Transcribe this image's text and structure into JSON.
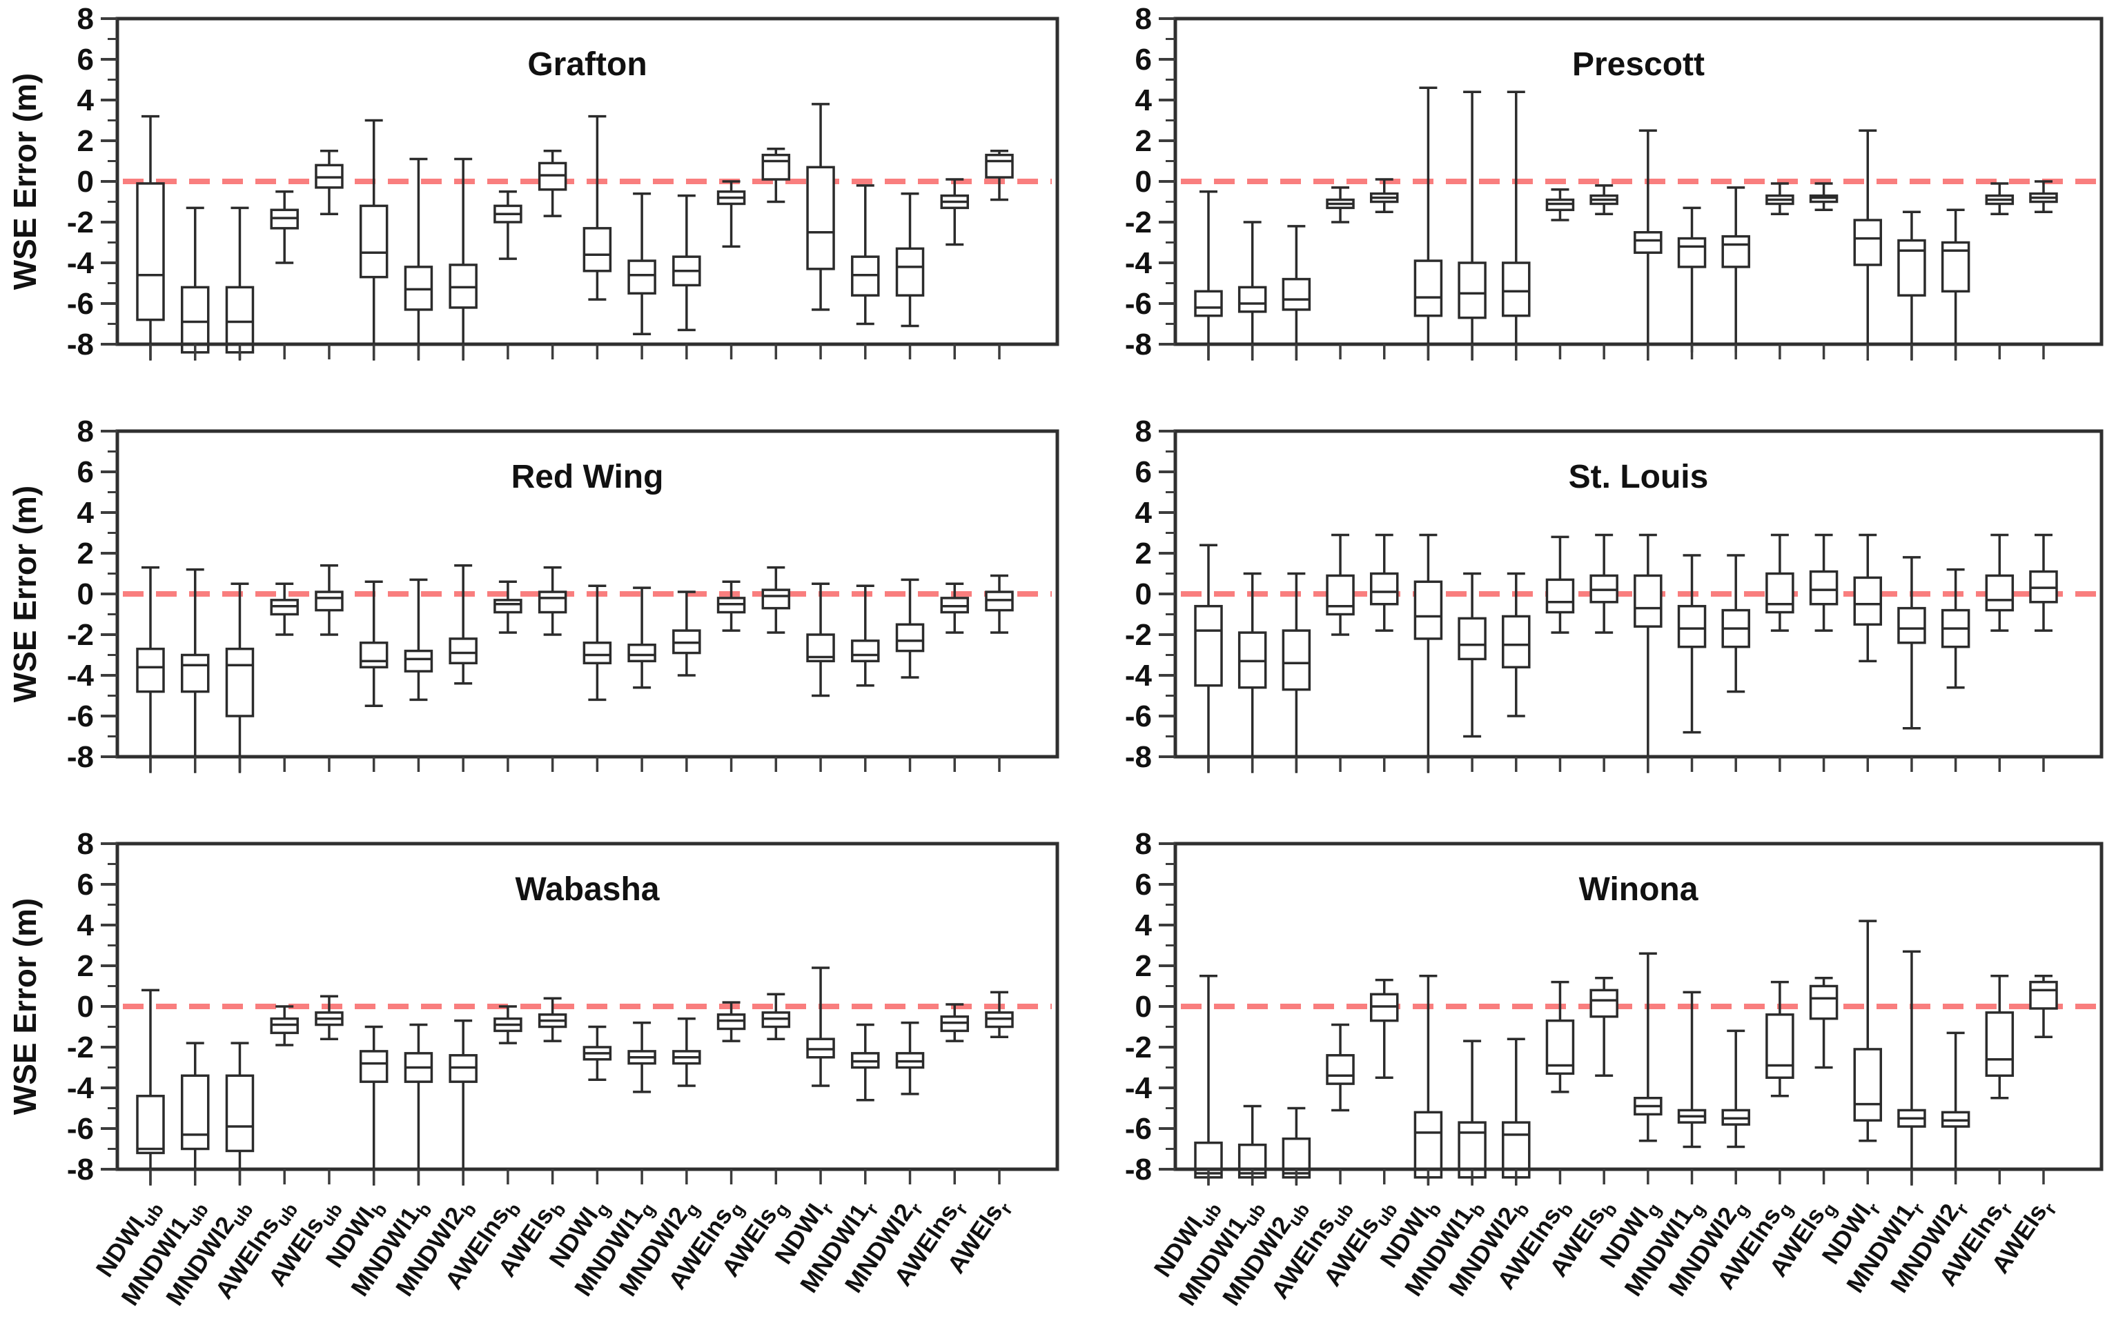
{
  "figure": {
    "ylabel": "WSE Error (m)",
    "ytick_labels": [
      "8",
      "6",
      "4",
      "2",
      "0",
      "-2",
      "-4",
      "-6",
      "-8"
    ],
    "colors": {
      "background": "#ffffff",
      "axis_frame": "#2f2f2f",
      "box_stroke": "#2b2b2b",
      "tick": "#3c3c3c",
      "text": "#111111",
      "zero_line": "#f96d6d"
    }
  },
  "chart_data": {
    "type": "boxplot_grid",
    "title": "",
    "ylabel": "WSE Error (m)",
    "xlabel": "",
    "ylim": [
      -8,
      8
    ],
    "yticks_major": [
      8,
      6,
      4,
      2,
      0,
      -2,
      -4,
      -6,
      -8
    ],
    "yticks_minor": [
      7,
      5,
      3,
      1,
      -1,
      -3,
      -5,
      -7
    ],
    "zero_reference_line": 0,
    "grid": "off",
    "legend": "none",
    "stats_order": [
      "whisker_low",
      "q1",
      "median",
      "q3",
      "whisker_high"
    ],
    "clipping_note": "values beyond ylim mean the whisker/box visibly extends past the -8 axis line (drawn unclipped, no end cap)",
    "categories": [
      "NDWI_ub",
      "MNDWI1_ub",
      "MNDWI2_ub",
      "AWEIns_ub",
      "AWEIs_ub",
      "NDWI_b",
      "MNDWI1_b",
      "MNDWI2_b",
      "AWEIns_b",
      "AWEIs_b",
      "NDWI_g",
      "MNDWI1_g",
      "MNDWI2_g",
      "AWEIns_g",
      "AWEIs_g",
      "NDWI_r",
      "MNDWI1_r",
      "MNDWI2_r",
      "AWEIns_r",
      "AWEIs_r"
    ],
    "category_display": [
      {
        "base": "NDWI",
        "sub": "ub"
      },
      {
        "base": "MNDWI1",
        "sub": "ub"
      },
      {
        "base": "MNDWI2",
        "sub": "ub"
      },
      {
        "base": "AWEIns",
        "sub": "ub"
      },
      {
        "base": "AWEIs",
        "sub": "ub"
      },
      {
        "base": "NDWI",
        "sub": "b"
      },
      {
        "base": "MNDWI1",
        "sub": "b"
      },
      {
        "base": "MNDWI2",
        "sub": "b"
      },
      {
        "base": "AWEIns",
        "sub": "b"
      },
      {
        "base": "AWEIs",
        "sub": "b"
      },
      {
        "base": "NDWI",
        "sub": "g"
      },
      {
        "base": "MNDWI1",
        "sub": "g"
      },
      {
        "base": "MNDWI2",
        "sub": "g"
      },
      {
        "base": "AWEIns",
        "sub": "g"
      },
      {
        "base": "AWEIs",
        "sub": "g"
      },
      {
        "base": "NDWI",
        "sub": "r"
      },
      {
        "base": "MNDWI1",
        "sub": "r"
      },
      {
        "base": "MNDWI2",
        "sub": "r"
      },
      {
        "base": "AWEIns",
        "sub": "r"
      },
      {
        "base": "AWEIs",
        "sub": "r"
      }
    ],
    "panels": [
      {
        "title": "Grafton",
        "row": 0,
        "col": 0,
        "values": [
          [
            -8.8,
            -6.8,
            -4.6,
            -0.1,
            3.2
          ],
          [
            -8.8,
            -8.4,
            -6.9,
            -5.2,
            -1.3
          ],
          [
            -8.8,
            -8.4,
            -6.9,
            -5.2,
            -1.3
          ],
          [
            -4.0,
            -2.3,
            -1.8,
            -1.4,
            -0.5
          ],
          [
            -1.6,
            -0.3,
            0.2,
            0.8,
            1.5
          ],
          [
            -8.8,
            -4.7,
            -3.5,
            -1.2,
            3.0
          ],
          [
            -8.8,
            -6.3,
            -5.3,
            -4.2,
            1.1
          ],
          [
            -8.8,
            -6.2,
            -5.2,
            -4.1,
            1.1
          ],
          [
            -3.8,
            -2.0,
            -1.6,
            -1.2,
            -0.5
          ],
          [
            -1.7,
            -0.4,
            0.3,
            0.9,
            1.5
          ],
          [
            -5.8,
            -4.4,
            -3.6,
            -2.3,
            3.2
          ],
          [
            -7.5,
            -5.5,
            -4.6,
            -3.9,
            -0.6
          ],
          [
            -7.3,
            -5.1,
            -4.4,
            -3.7,
            -0.7
          ],
          [
            -3.2,
            -1.1,
            -0.8,
            -0.5,
            0.0
          ],
          [
            -1.0,
            0.1,
            1.0,
            1.3,
            1.6
          ],
          [
            -6.3,
            -4.3,
            -2.5,
            0.7,
            3.8
          ],
          [
            -7.0,
            -5.6,
            -4.6,
            -3.7,
            -0.2
          ],
          [
            -7.1,
            -5.6,
            -4.2,
            -3.3,
            -0.6
          ],
          [
            -3.1,
            -1.3,
            -1.0,
            -0.7,
            0.1
          ],
          [
            -0.9,
            0.2,
            1.0,
            1.3,
            1.5
          ]
        ]
      },
      {
        "title": "Prescott",
        "row": 0,
        "col": 1,
        "values": [
          [
            -8.8,
            -6.6,
            -6.2,
            -5.4,
            -0.5
          ],
          [
            -8.8,
            -6.4,
            -6.0,
            -5.2,
            -2.0
          ],
          [
            -8.8,
            -6.3,
            -5.8,
            -4.8,
            -2.2
          ],
          [
            -2.0,
            -1.3,
            -1.1,
            -0.9,
            -0.3
          ],
          [
            -1.5,
            -1.0,
            -0.8,
            -0.6,
            0.1
          ],
          [
            -8.8,
            -6.6,
            -5.7,
            -3.9,
            4.6
          ],
          [
            -8.8,
            -6.7,
            -5.5,
            -4.0,
            4.4
          ],
          [
            -8.8,
            -6.6,
            -5.4,
            -4.0,
            4.4
          ],
          [
            -1.9,
            -1.4,
            -1.1,
            -0.9,
            -0.4
          ],
          [
            -1.6,
            -1.1,
            -0.9,
            -0.7,
            -0.2
          ],
          [
            -8.8,
            -3.5,
            -2.9,
            -2.5,
            2.5
          ],
          [
            -8.4,
            -4.2,
            -3.2,
            -2.8,
            -1.3
          ],
          [
            -8.4,
            -4.2,
            -3.1,
            -2.7,
            -0.3
          ],
          [
            -1.6,
            -1.1,
            -0.9,
            -0.7,
            -0.1
          ],
          [
            -1.4,
            -1.0,
            -0.8,
            -0.7,
            -0.1
          ],
          [
            -8.8,
            -4.1,
            -2.8,
            -1.9,
            2.5
          ],
          [
            -8.8,
            -5.6,
            -3.4,
            -2.9,
            -1.5
          ],
          [
            -8.8,
            -5.4,
            -3.4,
            -3.0,
            -1.4
          ],
          [
            -1.6,
            -1.1,
            -0.9,
            -0.7,
            -0.1
          ],
          [
            -1.5,
            -1.0,
            -0.8,
            -0.6,
            0.0
          ]
        ]
      },
      {
        "title": "Red Wing",
        "row": 1,
        "col": 0,
        "values": [
          [
            -8.8,
            -4.8,
            -3.6,
            -2.7,
            1.3
          ],
          [
            -8.8,
            -4.8,
            -3.5,
            -3.0,
            1.2
          ],
          [
            -8.8,
            -6.0,
            -3.5,
            -2.7,
            0.5
          ],
          [
            -2.0,
            -1.0,
            -0.6,
            -0.3,
            0.5
          ],
          [
            -2.0,
            -0.8,
            -0.2,
            0.1,
            1.4
          ],
          [
            -5.5,
            -3.6,
            -3.3,
            -2.4,
            0.6
          ],
          [
            -5.2,
            -3.8,
            -3.2,
            -2.8,
            0.7
          ],
          [
            -4.4,
            -3.4,
            -2.9,
            -2.2,
            1.4
          ],
          [
            -1.9,
            -0.9,
            -0.5,
            -0.3,
            0.6
          ],
          [
            -2.0,
            -0.9,
            -0.2,
            0.1,
            1.3
          ],
          [
            -5.2,
            -3.4,
            -3.0,
            -2.4,
            0.4
          ],
          [
            -4.6,
            -3.3,
            -3.0,
            -2.5,
            0.3
          ],
          [
            -4.0,
            -2.9,
            -2.4,
            -1.8,
            0.1
          ],
          [
            -1.8,
            -0.9,
            -0.5,
            -0.2,
            0.6
          ],
          [
            -1.9,
            -0.7,
            -0.1,
            0.2,
            1.3
          ],
          [
            -5.0,
            -3.3,
            -3.1,
            -2.0,
            0.5
          ],
          [
            -4.5,
            -3.3,
            -3.0,
            -2.3,
            0.4
          ],
          [
            -4.1,
            -2.8,
            -2.3,
            -1.5,
            0.7
          ],
          [
            -1.9,
            -0.9,
            -0.6,
            -0.2,
            0.5
          ],
          [
            -1.9,
            -0.8,
            -0.3,
            0.1,
            0.9
          ]
        ]
      },
      {
        "title": "St. Louis",
        "row": 1,
        "col": 1,
        "values": [
          [
            -8.8,
            -4.5,
            -1.8,
            -0.6,
            2.4
          ],
          [
            -8.8,
            -4.6,
            -3.3,
            -1.9,
            1.0
          ],
          [
            -8.8,
            -4.7,
            -3.4,
            -1.8,
            1.0
          ],
          [
            -2.0,
            -1.0,
            -0.6,
            0.9,
            2.9
          ],
          [
            -1.8,
            -0.5,
            0.1,
            1.0,
            2.9
          ],
          [
            -8.8,
            -2.2,
            -1.1,
            0.6,
            2.9
          ],
          [
            -7.0,
            -3.2,
            -2.5,
            -1.2,
            1.0
          ],
          [
            -6.0,
            -3.6,
            -2.5,
            -1.1,
            1.0
          ],
          [
            -1.9,
            -0.9,
            -0.4,
            0.7,
            2.8
          ],
          [
            -1.9,
            -0.4,
            0.2,
            0.9,
            2.9
          ],
          [
            -8.8,
            -1.6,
            -0.7,
            0.9,
            2.9
          ],
          [
            -6.8,
            -2.6,
            -1.7,
            -0.6,
            1.9
          ],
          [
            -4.8,
            -2.6,
            -1.7,
            -0.8,
            1.9
          ],
          [
            -1.8,
            -0.9,
            -0.5,
            1.0,
            2.9
          ],
          [
            -1.8,
            -0.5,
            0.2,
            1.1,
            2.9
          ],
          [
            -3.3,
            -1.5,
            -0.5,
            0.8,
            2.9
          ],
          [
            -6.6,
            -2.4,
            -1.7,
            -0.7,
            1.8
          ],
          [
            -4.6,
            -2.6,
            -1.7,
            -0.8,
            1.2
          ],
          [
            -1.8,
            -0.8,
            -0.3,
            0.9,
            2.9
          ],
          [
            -1.8,
            -0.4,
            0.3,
            1.1,
            2.9
          ]
        ]
      },
      {
        "title": "Wabasha",
        "row": 2,
        "col": 0,
        "values": [
          [
            -8.8,
            -7.2,
            -7.0,
            -4.4,
            0.8
          ],
          [
            -8.8,
            -7.0,
            -6.3,
            -3.4,
            -1.8
          ],
          [
            -8.8,
            -7.1,
            -5.9,
            -3.4,
            -1.8
          ],
          [
            -1.9,
            -1.3,
            -0.9,
            -0.6,
            0.0
          ],
          [
            -1.6,
            -0.9,
            -0.6,
            -0.3,
            0.5
          ],
          [
            -8.8,
            -3.7,
            -2.8,
            -2.2,
            -1.0
          ],
          [
            -8.8,
            -3.7,
            -3.0,
            -2.3,
            -0.9
          ],
          [
            -8.8,
            -3.7,
            -3.0,
            -2.4,
            -0.7
          ],
          [
            -1.8,
            -1.2,
            -0.9,
            -0.6,
            0.0
          ],
          [
            -1.7,
            -1.0,
            -0.7,
            -0.4,
            0.4
          ],
          [
            -3.6,
            -2.6,
            -2.3,
            -2.0,
            -1.0
          ],
          [
            -4.2,
            -2.8,
            -2.5,
            -2.2,
            -0.8
          ],
          [
            -3.9,
            -2.8,
            -2.5,
            -2.2,
            -0.6
          ],
          [
            -1.7,
            -1.1,
            -0.7,
            -0.4,
            0.2
          ],
          [
            -1.6,
            -1.0,
            -0.6,
            -0.3,
            0.6
          ],
          [
            -3.9,
            -2.5,
            -2.1,
            -1.6,
            1.9
          ],
          [
            -4.6,
            -3.0,
            -2.7,
            -2.3,
            -0.9
          ],
          [
            -4.3,
            -3.0,
            -2.7,
            -2.3,
            -0.8
          ],
          [
            -1.7,
            -1.2,
            -0.8,
            -0.5,
            0.1
          ],
          [
            -1.5,
            -1.0,
            -0.6,
            -0.3,
            0.7
          ]
        ]
      },
      {
        "title": "Winona",
        "row": 2,
        "col": 1,
        "values": [
          [
            -8.8,
            -8.4,
            -8.2,
            -6.7,
            1.5
          ],
          [
            -8.8,
            -8.4,
            -8.2,
            -6.8,
            -4.9
          ],
          [
            -8.8,
            -8.4,
            -8.2,
            -6.5,
            -5.0
          ],
          [
            -5.1,
            -3.8,
            -3.4,
            -2.4,
            -0.9
          ],
          [
            -3.5,
            -0.7,
            0.0,
            0.6,
            1.3
          ],
          [
            -8.8,
            -8.4,
            -6.2,
            -5.2,
            1.5
          ],
          [
            -8.8,
            -8.4,
            -6.2,
            -5.7,
            -1.7
          ],
          [
            -8.8,
            -8.4,
            -6.3,
            -5.7,
            -1.6
          ],
          [
            -4.2,
            -3.3,
            -2.9,
            -0.7,
            1.2
          ],
          [
            -3.4,
            -0.5,
            0.3,
            0.8,
            1.4
          ],
          [
            -6.6,
            -5.3,
            -4.9,
            -4.5,
            2.6
          ],
          [
            -6.9,
            -5.7,
            -5.4,
            -5.1,
            0.7
          ],
          [
            -6.9,
            -5.8,
            -5.5,
            -5.1,
            -1.2
          ],
          [
            -4.4,
            -3.5,
            -2.9,
            -0.4,
            1.2
          ],
          [
            -3.0,
            -0.6,
            0.4,
            1.0,
            1.4
          ],
          [
            -6.6,
            -5.6,
            -4.8,
            -2.1,
            4.2
          ],
          [
            -8.8,
            -5.9,
            -5.5,
            -5.1,
            2.7
          ],
          [
            -8.5,
            -5.9,
            -5.6,
            -5.2,
            -1.3
          ],
          [
            -4.5,
            -3.4,
            -2.6,
            -0.3,
            1.5
          ],
          [
            -1.5,
            -0.1,
            0.8,
            1.2,
            1.5
          ]
        ]
      }
    ]
  }
}
